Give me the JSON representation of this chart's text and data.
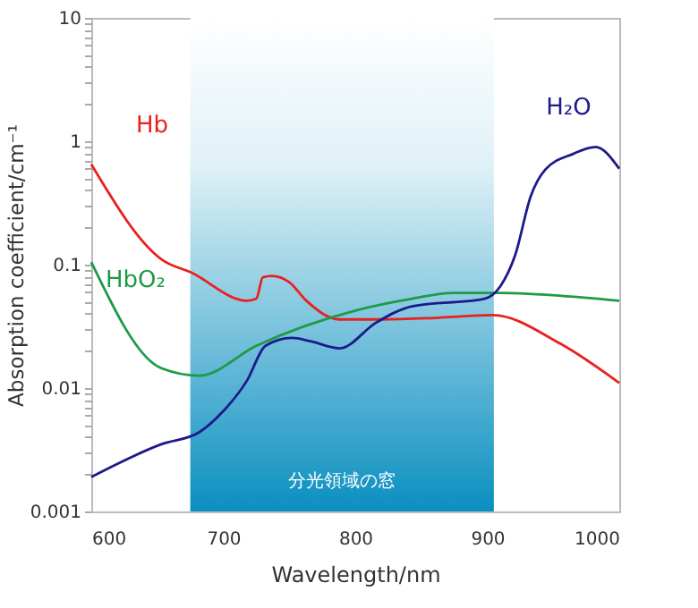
{
  "chart_data": {
    "type": "line",
    "xlabel": "Wavelength/nm",
    "ylabel": "Absorption coefficient/cm⁻¹",
    "log": "y",
    "grid": false,
    "marker": "none",
    "line_style": "solid",
    "xlim": [
      600,
      1000
    ],
    "xticks": [
      600,
      700,
      800,
      900,
      1000
    ],
    "ylim": [
      0.001,
      10
    ],
    "yticks": [
      0.001,
      {
        "value": 0.002,
        "label": null
      },
      {
        "value": 0.003,
        "label": null
      },
      {
        "value": 0.004,
        "label": null
      },
      {
        "value": 0.005,
        "label": null
      },
      {
        "value": 0.006,
        "label": null
      },
      {
        "value": 0.007,
        "label": null
      },
      {
        "value": 0.008,
        "label": null
      },
      {
        "value": 0.009,
        "label": null
      },
      0.01,
      {
        "value": 0.02,
        "label": null
      },
      {
        "value": 0.03,
        "label": null
      },
      {
        "value": 0.04,
        "label": null
      },
      {
        "value": 0.05,
        "label": null
      },
      {
        "value": 0.06,
        "label": null
      },
      {
        "value": 0.07,
        "label": null
      },
      {
        "value": 0.08,
        "label": null
      },
      {
        "value": 0.09,
        "label": null
      },
      0.1,
      {
        "value": 0.2,
        "label": null
      },
      {
        "value": 0.3,
        "label": null
      },
      {
        "value": 0.4,
        "label": null
      },
      {
        "value": 0.5,
        "label": null
      },
      {
        "value": 0.6,
        "label": null
      },
      {
        "value": 0.7,
        "label": null
      },
      {
        "value": 0.8,
        "label": null
      },
      {
        "value": 0.9,
        "label": null
      },
      1,
      {
        "value": 2,
        "label": null
      },
      {
        "value": 3,
        "label": null
      },
      {
        "value": 4,
        "label": null
      },
      {
        "value": 5,
        "label": null
      },
      {
        "value": 6,
        "label": null
      },
      {
        "value": 7,
        "label": null
      },
      {
        "value": 8,
        "label": null
      },
      {
        "value": 9,
        "label": null
      },
      10
    ],
    "bands": [
      {
        "axis": "x",
        "from": 675,
        "to": 905,
        "label": "分光領域の窓",
        "color": "#0a8fc0"
      }
    ],
    "series": [
      {
        "name": "Hb",
        "color": "#e8211f",
        "x": [
          600,
          655,
          675,
          718,
          725,
          730,
          737,
          750,
          763,
          788,
          820,
          860,
          904,
          955,
          1000
        ],
        "values": [
          0.65,
          0.107,
          0.087,
          0.051,
          0.053,
          0.079,
          0.081,
          0.072,
          0.051,
          0.036,
          0.036,
          0.037,
          0.039,
          0.023,
          0.011
        ]
      },
      {
        "name": "HbO₂",
        "color": "#1f9a48",
        "x": [
          600,
          653,
          682,
          725,
          802,
          843,
          874,
          910,
          965,
          1000
        ],
        "values": [
          0.105,
          0.0145,
          0.0126,
          0.022,
          0.043,
          0.053,
          0.059,
          0.059,
          0.055,
          0.051
        ]
      },
      {
        "name": "H₂O",
        "color": "#1c1a8a",
        "x": [
          600,
          653,
          682,
          700,
          718,
          732,
          752,
          766,
          788,
          816,
          843,
          898,
          910,
          921,
          933,
          944,
          965,
          982,
          1000
        ],
        "values": [
          0.0019,
          0.0035,
          0.0044,
          0.0065,
          0.0115,
          0.022,
          0.0255,
          0.024,
          0.021,
          0.034,
          0.046,
          0.053,
          0.067,
          0.118,
          0.36,
          0.59,
          0.79,
          0.9,
          0.6
        ]
      }
    ]
  }
}
